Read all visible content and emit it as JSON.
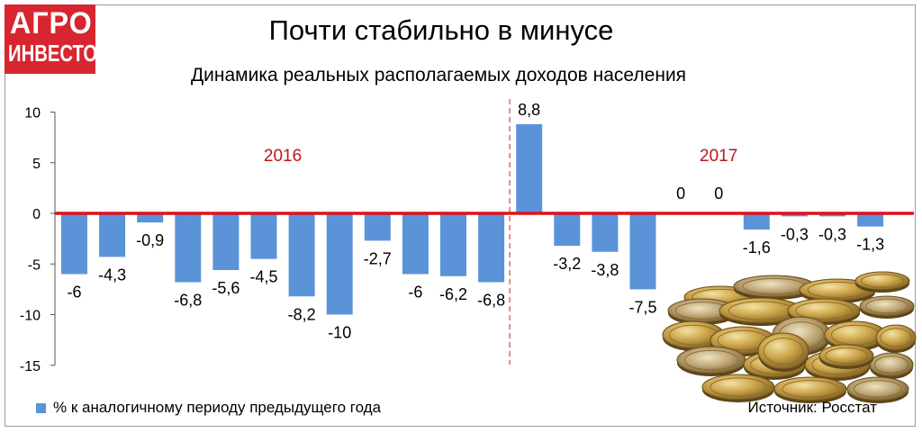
{
  "brand": {
    "line1": "АГРО",
    "line2": "ИНВЕСТОР",
    "color": "#d7262f"
  },
  "title": "Почти стабильно в минусе",
  "subtitle": "Динамика реальных располагаемых доходов населения",
  "legend_label": "% к аналогичному периоду предыдущего года",
  "source": "Источник: Росстат",
  "colors": {
    "bar": "#5b93d9",
    "zero_line": "#e0101a",
    "year_label": "#c0141c",
    "divider": "#e06a6a"
  },
  "chart_data": {
    "type": "bar",
    "values": [
      -6,
      -4.3,
      -0.9,
      -6.8,
      -5.6,
      -4.5,
      -8.2,
      -10,
      -2.7,
      -6,
      -6.2,
      -6.8,
      8.8,
      -3.2,
      -3.8,
      -7.5,
      0,
      0,
      -1.6,
      -0.3,
      -0.3,
      -1.3
    ],
    "data_labels": [
      "-6",
      "-4,3",
      "-0,9",
      "-6,8",
      "-5,6",
      "-4,5",
      "-8,2",
      "-10",
      "-2,7",
      "-6",
      "-6,2",
      "-6,8",
      "8,8",
      "-3,2",
      "-3,8",
      "-7,5",
      "0",
      "0",
      "-1,6",
      "-0,3",
      "-0,3",
      "-1,3"
    ],
    "y_ticks": [
      10,
      5,
      0,
      -5,
      -10,
      -15
    ],
    "ylim": [
      -15,
      10
    ],
    "year_labels": [
      {
        "text": "2016",
        "x_index": 5.5
      },
      {
        "text": "2017",
        "x_index": 17
      }
    ],
    "divider_after_index": 11,
    "legend_position": "bottom-left",
    "grid": false
  }
}
